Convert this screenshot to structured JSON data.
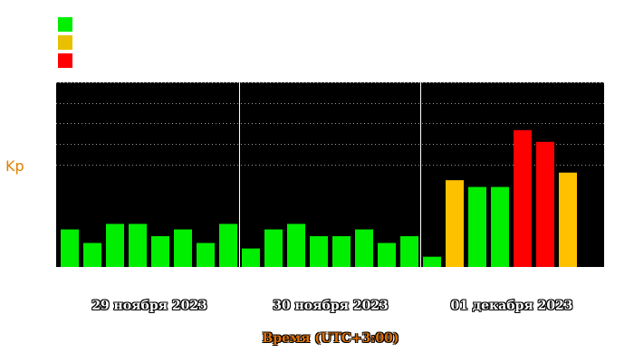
{
  "chart_data": {
    "type": "bar",
    "title": "",
    "ylabel": "Kp",
    "xlabel": "Время (UTC+3:00)",
    "ylim": [
      0,
      9
    ],
    "grid": true,
    "days": [
      "29 ноября 2023",
      "30 ноября 2023",
      "01 декабря 2023"
    ],
    "values": [
      1.83,
      1.17,
      2.1,
      2.1,
      1.5,
      1.83,
      1.17,
      2.1,
      0.9,
      1.83,
      2.1,
      1.5,
      1.5,
      1.83,
      1.17,
      1.5,
      0.5,
      4.23,
      3.9,
      3.9,
      6.67,
      6.1,
      4.6
    ],
    "level_colors": {
      "low": "#00ee00",
      "moderate": "#ffc000",
      "high": "#ff0000"
    },
    "legend_colors": [
      "#00ee00",
      "#e8c000",
      "#ff0000"
    ]
  }
}
